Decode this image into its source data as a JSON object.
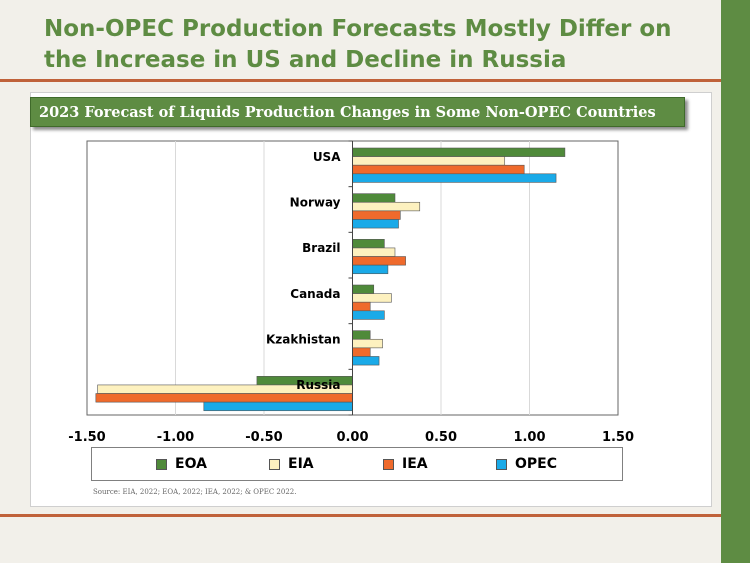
{
  "slide": {
    "title_line1": "Non-OPEC Production Forecasts Mostly Differ on",
    "title_line2": "the Increase in US and Decline in Russia",
    "source": "Source: EIA, 2022; EOA, 2022; IEA, 2022; & OPEC 2022."
  },
  "colors": {
    "accent_green": "#5e8c43",
    "rule_orange": "#c0623a"
  },
  "chart_data": {
    "type": "bar",
    "orientation": "horizontal",
    "title": "2023 Forecast of Liquids Production Changes in Some Non-OPEC Countries",
    "categories": [
      "USA",
      "Norway",
      "Brazil",
      "Canada",
      "Kzakhistan",
      "Russia"
    ],
    "series": [
      {
        "name": "EOA",
        "color": "#4f8a3a",
        "values": [
          1.2,
          0.24,
          0.18,
          0.12,
          0.1,
          -0.54
        ]
      },
      {
        "name": "EIA",
        "color": "#fdf1bf",
        "values": [
          0.86,
          0.38,
          0.24,
          0.22,
          0.17,
          -1.44
        ]
      },
      {
        "name": "IEA",
        "color": "#ef6a2c",
        "values": [
          0.97,
          0.27,
          0.3,
          0.1,
          0.1,
          -1.45
        ]
      },
      {
        "name": "OPEC",
        "color": "#1aaae8",
        "values": [
          1.15,
          0.26,
          0.2,
          0.18,
          0.15,
          -0.84
        ]
      }
    ],
    "xlim": [
      -1.5,
      1.5
    ],
    "xticks": [
      "-1.50",
      "-1.00",
      "-0.50",
      "0.00",
      "0.50",
      "1.00",
      "1.50"
    ],
    "grid": true,
    "legend_position": "bottom"
  }
}
